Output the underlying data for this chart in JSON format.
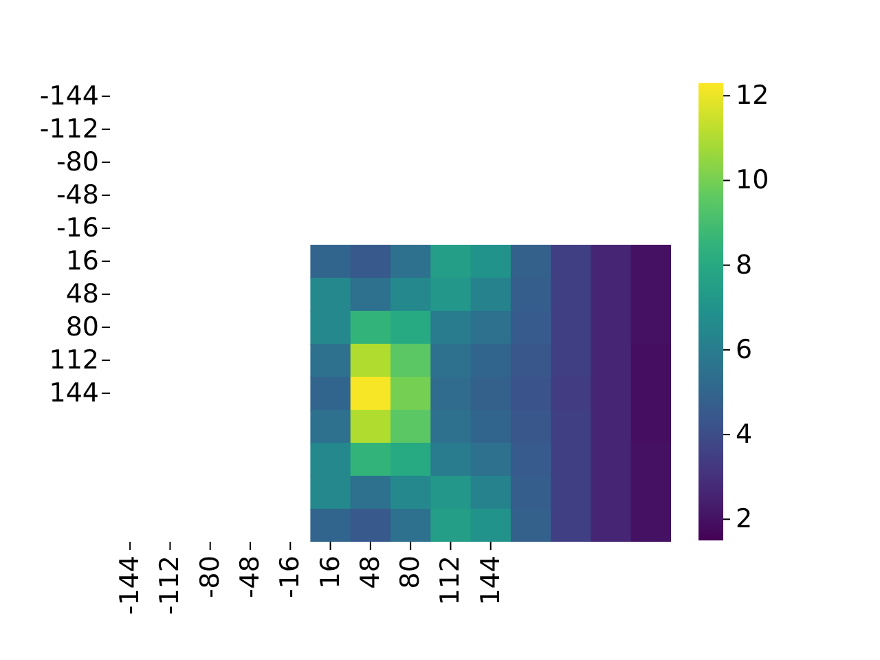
{
  "chart_data": {
    "type": "heatmap",
    "categories": [
      "-144",
      "-112",
      "-80",
      "-48",
      "-16",
      "16",
      "48",
      "80",
      "112",
      "144",
      null,
      null,
      null,
      null
    ],
    "y_categories": [
      "-144",
      "-112",
      "-80",
      "-48",
      "-16",
      "16",
      "48",
      "80",
      "112",
      "144",
      null,
      null,
      null,
      null
    ],
    "clim": [
      1.5,
      12.3
    ],
    "cticks": [
      2,
      4,
      6,
      8,
      10,
      12
    ],
    "cells": [
      [
        null,
        null,
        null,
        null,
        null,
        null,
        null,
        null,
        null,
        null,
        null,
        null,
        null,
        null
      ],
      [
        null,
        null,
        null,
        null,
        null,
        null,
        null,
        null,
        null,
        null,
        null,
        null,
        null,
        null
      ],
      [
        null,
        null,
        null,
        null,
        null,
        null,
        null,
        null,
        null,
        null,
        null,
        null,
        null,
        null
      ],
      [
        null,
        null,
        null,
        null,
        null,
        null,
        null,
        null,
        null,
        null,
        null,
        null,
        null,
        null
      ],
      [
        null,
        null,
        null,
        null,
        null,
        null,
        null,
        null,
        null,
        null,
        null,
        null,
        null,
        null
      ],
      [
        null,
        null,
        null,
        null,
        null,
        5.0,
        4.5,
        5.5,
        7.5,
        7.0,
        4.8,
        3.5,
        2.6,
        2.0
      ],
      [
        null,
        null,
        null,
        null,
        null,
        6.5,
        5.5,
        6.5,
        7.2,
        6.3,
        4.7,
        3.5,
        2.6,
        2.0
      ],
      [
        null,
        null,
        null,
        null,
        null,
        6.5,
        8.5,
        8.0,
        6.0,
        5.5,
        4.6,
        3.5,
        2.6,
        2.0
      ],
      [
        null,
        null,
        null,
        null,
        null,
        5.5,
        11.0,
        9.5,
        5.5,
        5.0,
        4.4,
        3.5,
        2.6,
        1.9
      ],
      [
        null,
        null,
        null,
        null,
        null,
        5.0,
        12.2,
        10.0,
        5.3,
        4.8,
        4.3,
        3.4,
        2.6,
        1.9
      ],
      [
        null,
        null,
        null,
        null,
        null,
        5.5,
        11.0,
        9.5,
        5.5,
        5.0,
        4.4,
        3.5,
        2.6,
        1.9
      ],
      [
        null,
        null,
        null,
        null,
        null,
        6.5,
        8.5,
        8.0,
        6.0,
        5.5,
        4.6,
        3.5,
        2.6,
        2.0
      ],
      [
        null,
        null,
        null,
        null,
        null,
        6.5,
        5.5,
        6.5,
        7.2,
        6.3,
        4.7,
        3.5,
        2.6,
        2.0
      ],
      [
        null,
        null,
        null,
        null,
        null,
        5.0,
        4.5,
        5.5,
        7.5,
        7.0,
        4.8,
        3.5,
        2.6,
        2.0
      ]
    ]
  }
}
